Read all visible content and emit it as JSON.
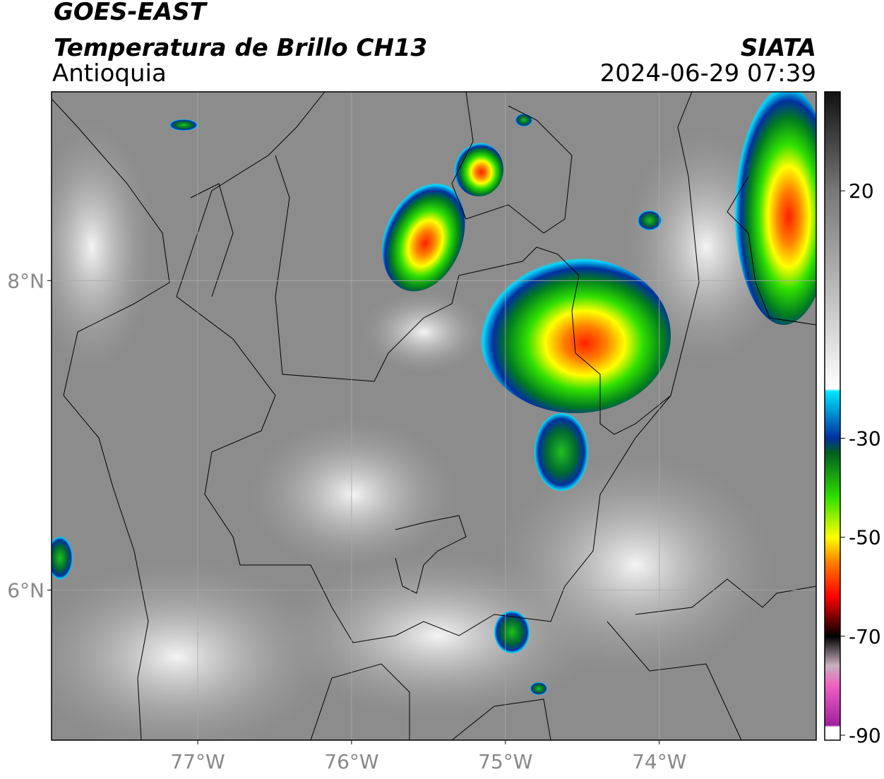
{
  "header": {
    "title": "GOES-EAST",
    "subtitle": "Temperatura de Brillo CH13",
    "region": "Antioquia",
    "source": "SIATA",
    "datetime": "2024-06-29 07:39"
  },
  "map": {
    "xlim": [
      -77.95,
      -72.98
    ],
    "ylim": [
      5.03,
      9.22
    ],
    "xticks": [
      {
        "value": -77,
        "label": "77°W"
      },
      {
        "value": -76,
        "label": "76°W"
      },
      {
        "value": -75,
        "label": "75°W"
      },
      {
        "value": -74,
        "label": "74°W"
      }
    ],
    "yticks": [
      {
        "value": 8,
        "label": "8°N"
      },
      {
        "value": 6,
        "label": "6°N"
      }
    ],
    "grid": true
  },
  "colorbar": {
    "lim": [
      -91,
      40
    ],
    "ticks": [
      20,
      -30,
      -50,
      -70,
      -90
    ]
  }
}
